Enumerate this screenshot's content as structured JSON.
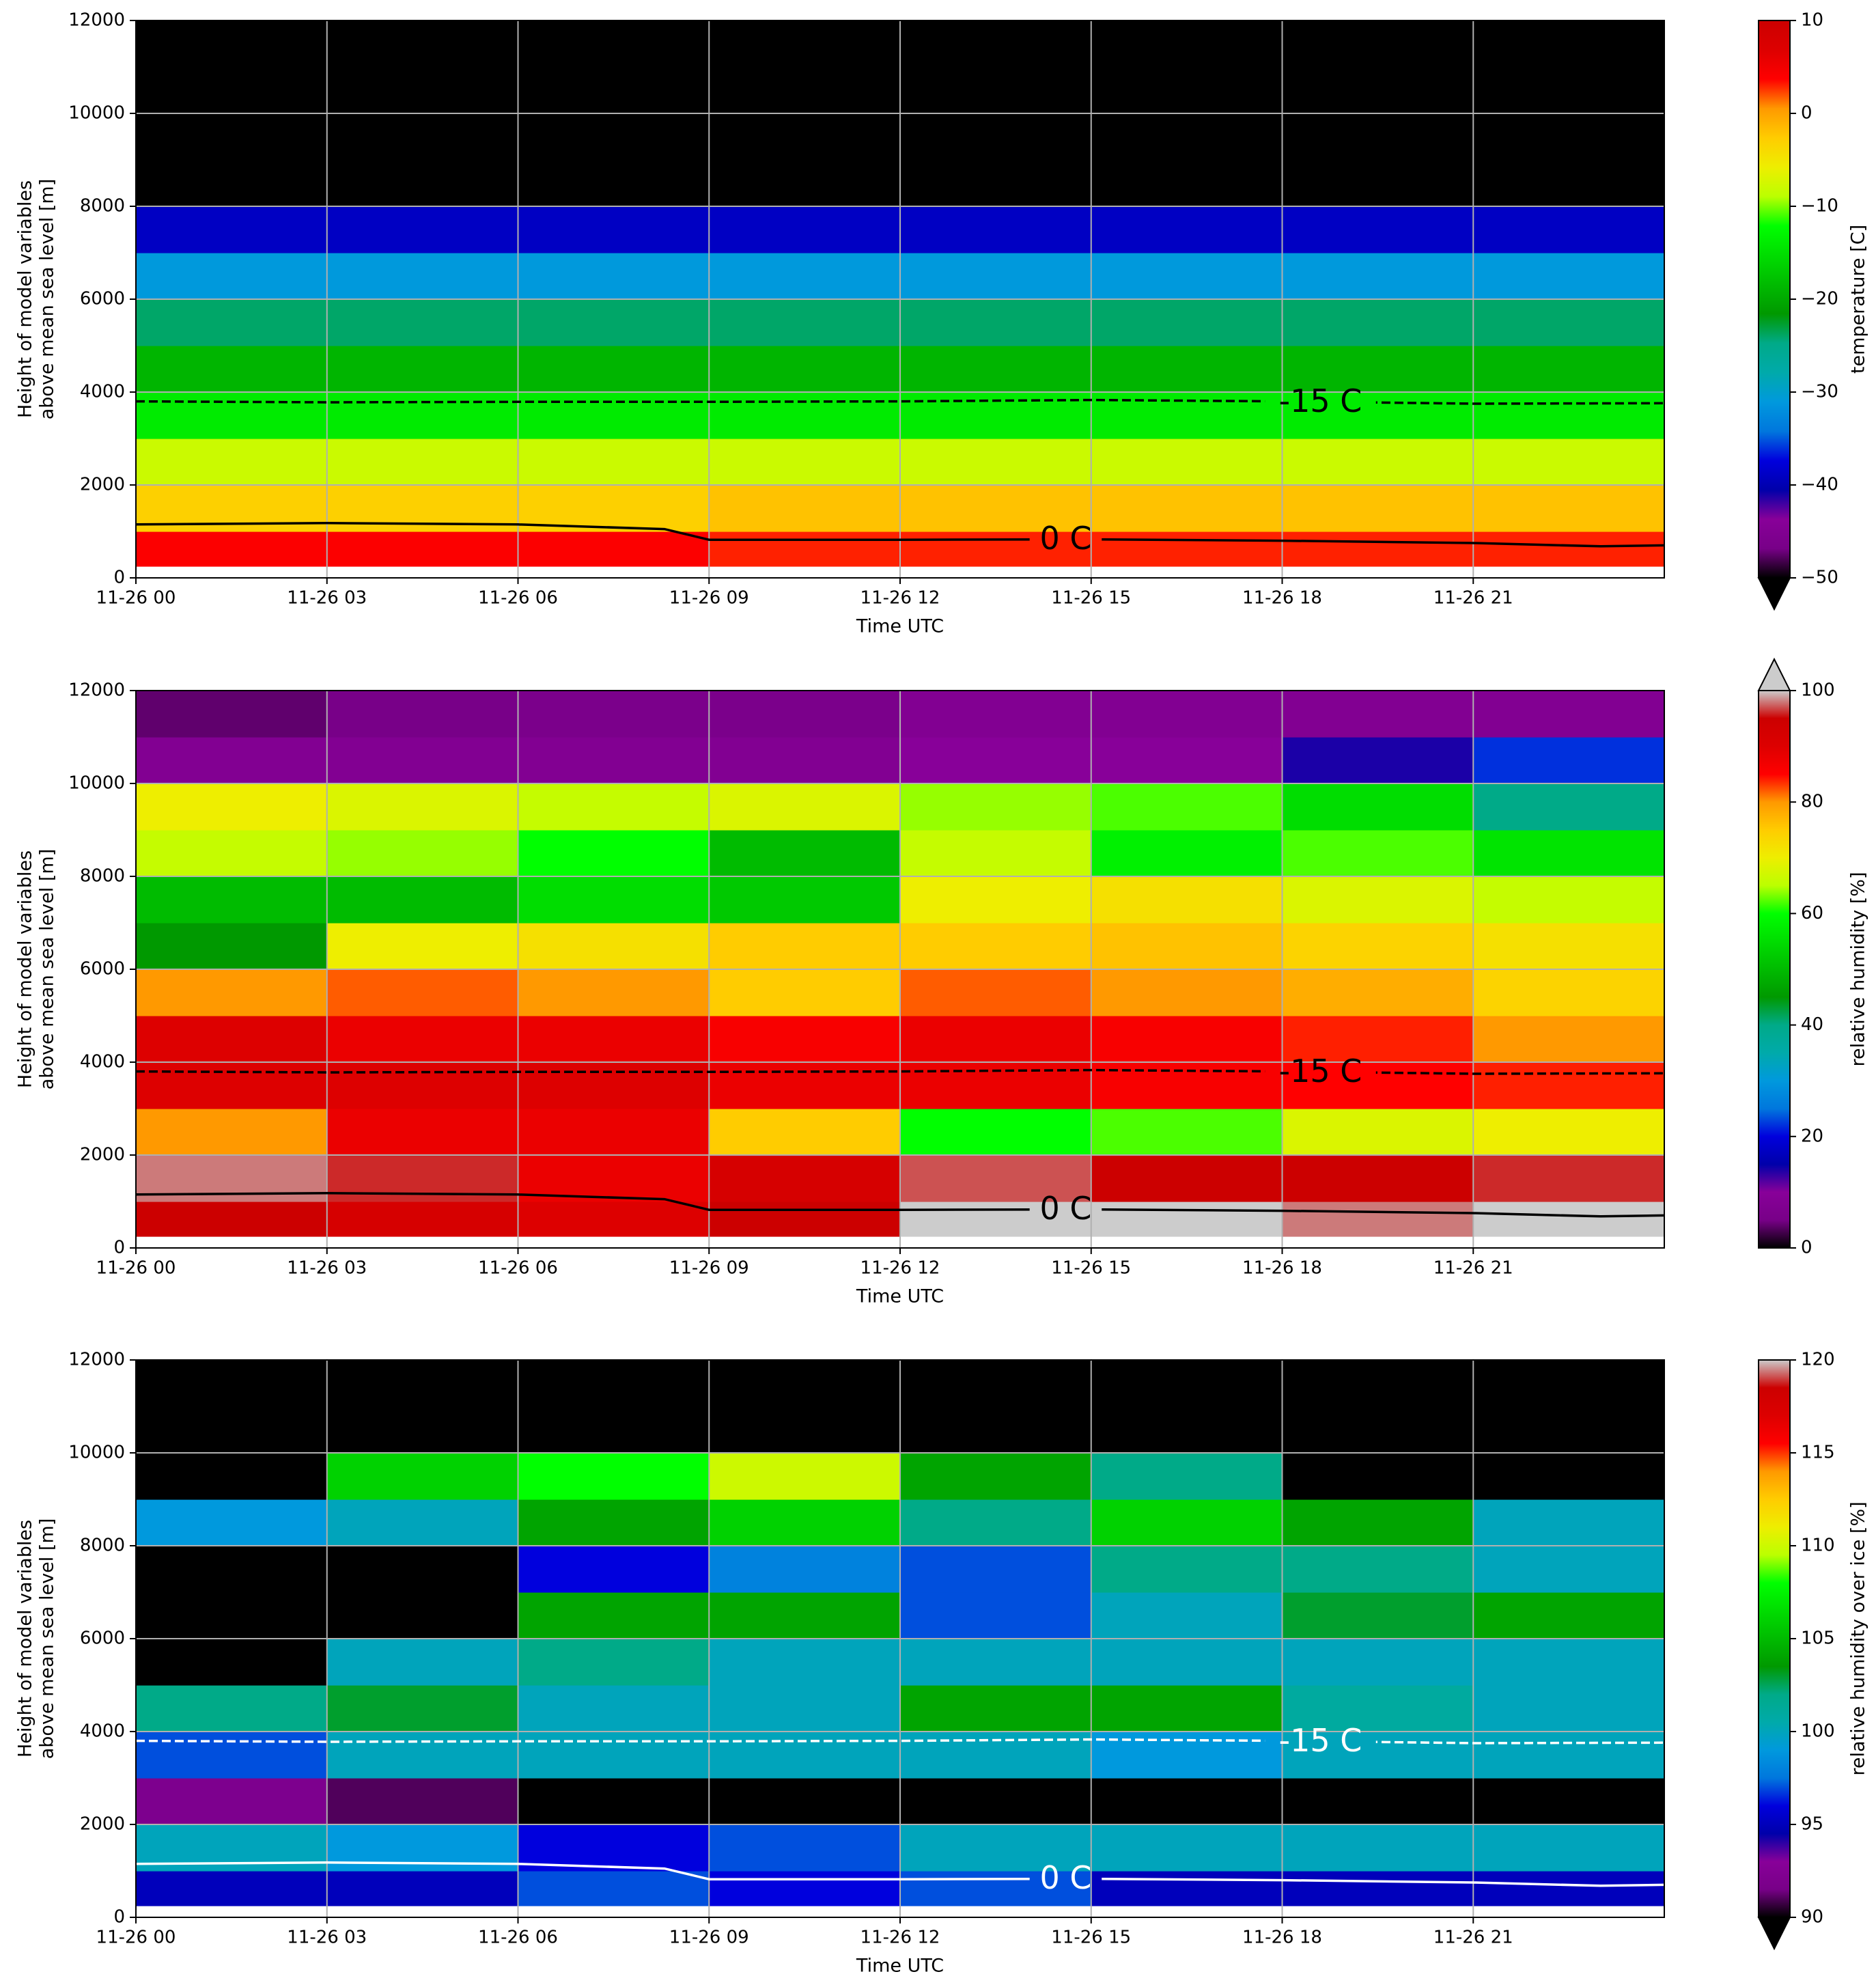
{
  "chart_data": [
    {
      "type": "heatmap",
      "xlabel": "Time UTC",
      "ylabel": [
        "Height of model variables",
        "above mean sea level [m]"
      ],
      "xlim": [
        0,
        24
      ],
      "xticks": [
        {
          "value": 0,
          "label": "11-26 00"
        },
        {
          "value": 3,
          "label": "11-26 03"
        },
        {
          "value": 6,
          "label": "11-26 06"
        },
        {
          "value": 9,
          "label": "11-26 09"
        },
        {
          "value": 12,
          "label": "11-26 12"
        },
        {
          "value": 15,
          "label": "11-26 15"
        },
        {
          "value": 18,
          "label": "11-26 18"
        },
        {
          "value": 21,
          "label": "11-26 21"
        }
      ],
      "ylim": [
        0,
        12000
      ],
      "yticks": [
        0,
        2000,
        4000,
        6000,
        8000,
        10000,
        12000
      ],
      "grid": true,
      "x_edges": [
        0,
        3,
        6,
        9,
        12,
        15,
        18,
        21,
        24
      ],
      "y_edges": [
        250,
        1000,
        2000,
        3000,
        4000,
        5000,
        6000,
        7000,
        8000,
        9000,
        10000,
        11000,
        12000
      ],
      "values": [
        [
          4,
          4,
          4,
          3,
          3,
          3,
          3,
          3
        ],
        [
          -3,
          -3,
          -3,
          -2,
          -2,
          -2,
          -2,
          -2
        ],
        [
          -8,
          -8,
          -8,
          -8,
          -8,
          -8,
          -8,
          -8
        ],
        [
          -14,
          -14,
          -14,
          -14,
          -14,
          -14,
          -14,
          -14
        ],
        [
          -19,
          -19,
          -19,
          -19,
          -19,
          -19,
          -19,
          -19
        ],
        [
          -24,
          -24,
          -24,
          -24,
          -24,
          -24,
          -24,
          -24
        ],
        [
          -31,
          -31,
          -31,
          -31,
          -31,
          -31,
          -31,
          -31
        ],
        [
          -39,
          -39,
          -39,
          -39,
          -39,
          -39,
          -39,
          -39
        ],
        [
          -52,
          -52,
          -52,
          -52,
          -52,
          -52,
          -52,
          -52
        ],
        [
          -58,
          -58,
          -58,
          -58,
          -58,
          -58,
          -58,
          -58
        ],
        [
          -60,
          -60,
          -60,
          -60,
          -60,
          -60,
          -60,
          -60
        ],
        [
          -60,
          -60,
          -60,
          -60,
          -60,
          -60,
          -60,
          -60
        ]
      ],
      "colormap": [
        "#000000",
        "#780088",
        "#880099",
        "#0000aa",
        "#0000dd",
        "#0077dd",
        "#0099dd",
        "#00aaaa",
        "#00aa88",
        "#009900",
        "#00bb00",
        "#00dd00",
        "#00ff00",
        "#bbff00",
        "#eeee00",
        "#ffcc00",
        "#ff9900",
        "#ff0000",
        "#dd0000",
        "#cc0000"
      ],
      "clim": [
        -50,
        10
      ],
      "cticks": [
        {
          "value": -50,
          "label": "−50"
        },
        {
          "value": -40,
          "label": "−40"
        },
        {
          "value": -30,
          "label": "−30"
        },
        {
          "value": -20,
          "label": "−20"
        },
        {
          "value": -10,
          "label": "−10"
        },
        0,
        10
      ],
      "colorbar_label": "temperature [C]",
      "extend": "min",
      "contours": [
        {
          "label": "-15 C",
          "color": "#000000",
          "dashed": true,
          "x": [
            0,
            3,
            6,
            9,
            12,
            15,
            18,
            21,
            24
          ],
          "y": [
            3800,
            3780,
            3790,
            3790,
            3800,
            3830,
            3800,
            3750,
            3760
          ]
        },
        {
          "label": "0 C",
          "color": "#000000",
          "dashed": false,
          "x": [
            0,
            3,
            6,
            8.3,
            9,
            12,
            15,
            18,
            21,
            23,
            24
          ],
          "y": [
            1150,
            1180,
            1150,
            1050,
            820,
            820,
            830,
            800,
            750,
            680,
            700
          ]
        }
      ]
    },
    {
      "type": "heatmap",
      "xlabel": "Time UTC",
      "ylabel": [
        "Height of model variables",
        "above mean sea level [m]"
      ],
      "xlim": [
        0,
        24
      ],
      "xticks": [
        {
          "value": 0,
          "label": "11-26 00"
        },
        {
          "value": 3,
          "label": "11-26 03"
        },
        {
          "value": 6,
          "label": "11-26 06"
        },
        {
          "value": 9,
          "label": "11-26 09"
        },
        {
          "value": 12,
          "label": "11-26 12"
        },
        {
          "value": 15,
          "label": "11-26 15"
        },
        {
          "value": 18,
          "label": "11-26 18"
        },
        {
          "value": 21,
          "label": "11-26 21"
        }
      ],
      "ylim": [
        0,
        12000
      ],
      "yticks": [
        0,
        2000,
        4000,
        6000,
        8000,
        10000,
        12000
      ],
      "grid": true,
      "x_edges": [
        0,
        3,
        6,
        9,
        12,
        15,
        18,
        21,
        24
      ],
      "y_edges": [
        250,
        1000,
        2000,
        3000,
        4000,
        5000,
        6000,
        7000,
        8000,
        9000,
        10000,
        11000,
        12000
      ],
      "values": [
        [
          95,
          92,
          90,
          95,
          100,
          100,
          98,
          100
        ],
        [
          98,
          96,
          88,
          92,
          97,
          95,
          95,
          96
        ],
        [
          80,
          88,
          88,
          75,
          60,
          62,
          68,
          70
        ],
        [
          90,
          90,
          90,
          88,
          88,
          86,
          85,
          84
        ],
        [
          90,
          88,
          88,
          86,
          88,
          86,
          84,
          80
        ],
        [
          80,
          82,
          80,
          75,
          82,
          80,
          78,
          74
        ],
        [
          45,
          70,
          72,
          75,
          75,
          76,
          74,
          72
        ],
        [
          50,
          50,
          55,
          52,
          70,
          72,
          68,
          66
        ],
        [
          66,
          64,
          60,
          50,
          66,
          58,
          62,
          56
        ],
        [
          70,
          68,
          66,
          68,
          64,
          62,
          55,
          40
        ],
        [
          8,
          8,
          8,
          8,
          10,
          10,
          14,
          22
        ],
        [
          4,
          5,
          6,
          6,
          8,
          8,
          8,
          8
        ]
      ],
      "colormap": [
        "#000000",
        "#780088",
        "#880099",
        "#0000aa",
        "#0000dd",
        "#0077dd",
        "#0099dd",
        "#00aaaa",
        "#00aa88",
        "#009900",
        "#00bb00",
        "#00dd00",
        "#00ff00",
        "#bbff00",
        "#eeee00",
        "#ffcc00",
        "#ff9900",
        "#ff0000",
        "#dd0000",
        "#cc0000",
        "#cccccc"
      ],
      "clim": [
        0,
        100
      ],
      "cticks": [
        0,
        20,
        40,
        60,
        80,
        100
      ],
      "colorbar_label": "relative humidity [%]",
      "extend": "max",
      "contours": [
        {
          "label": "-15 C",
          "color": "#000000",
          "dashed": true,
          "x": [
            0,
            3,
            6,
            9,
            12,
            15,
            18,
            21,
            24
          ],
          "y": [
            3800,
            3780,
            3790,
            3790,
            3800,
            3830,
            3800,
            3750,
            3760
          ]
        },
        {
          "label": "0 C",
          "color": "#000000",
          "dashed": false,
          "x": [
            0,
            3,
            6,
            8.3,
            9,
            12,
            15,
            18,
            21,
            23,
            24
          ],
          "y": [
            1150,
            1180,
            1150,
            1050,
            820,
            820,
            830,
            800,
            750,
            680,
            700
          ]
        }
      ]
    },
    {
      "type": "heatmap",
      "xlabel": "Time UTC",
      "ylabel": [
        "Height of model variables",
        "above mean sea level [m]"
      ],
      "xlim": [
        0,
        24
      ],
      "xticks": [
        {
          "value": 0,
          "label": "11-26 00"
        },
        {
          "value": 3,
          "label": "11-26 03"
        },
        {
          "value": 6,
          "label": "11-26 06"
        },
        {
          "value": 9,
          "label": "11-26 09"
        },
        {
          "value": 12,
          "label": "11-26 12"
        },
        {
          "value": 15,
          "label": "11-26 15"
        },
        {
          "value": 18,
          "label": "11-26 18"
        },
        {
          "value": 21,
          "label": "11-26 21"
        }
      ],
      "ylim": [
        0,
        12000
      ],
      "yticks": [
        0,
        2000,
        4000,
        6000,
        8000,
        10000,
        12000
      ],
      "grid": true,
      "x_edges": [
        0,
        3,
        6,
        9,
        12,
        15,
        18,
        21,
        24
      ],
      "y_edges": [
        250,
        1000,
        2000,
        3000,
        4000,
        5000,
        6000,
        7000,
        8000,
        9000,
        10000,
        11000,
        12000
      ],
      "values": [
        [
          95,
          95,
          97,
          96,
          97,
          95,
          95,
          95
        ],
        [
          100,
          99,
          96,
          97,
          100,
          100,
          100,
          100
        ],
        [
          92,
          91,
          88,
          86,
          86,
          85,
          85,
          85
        ],
        [
          97,
          100,
          100,
          100,
          100,
          99,
          100,
          100
        ],
        [
          102,
          103,
          100,
          100,
          104,
          104,
          101,
          100
        ],
        [
          88,
          100,
          102,
          100,
          100,
          100,
          100,
          100
        ],
        [
          85,
          88,
          104,
          104,
          97,
          100,
          103,
          104
        ],
        [
          85,
          86,
          96,
          98,
          97,
          102,
          102,
          100
        ],
        [
          99,
          100,
          104,
          106,
          102,
          106,
          104,
          100
        ],
        [
          85,
          106,
          108,
          110,
          104,
          102,
          85,
          85
        ],
        [
          85,
          85,
          85,
          85,
          85,
          85,
          85,
          85
        ],
        [
          85,
          85,
          85,
          85,
          85,
          85,
          85,
          85
        ]
      ],
      "colormap": [
        "#000000",
        "#780088",
        "#880099",
        "#0000aa",
        "#0000dd",
        "#0077dd",
        "#0099dd",
        "#00aaaa",
        "#00aa88",
        "#009900",
        "#00bb00",
        "#00dd00",
        "#00ff00",
        "#bbff00",
        "#eeee00",
        "#ffcc00",
        "#ff9900",
        "#ff0000",
        "#dd0000",
        "#cc0000",
        "#cccccc"
      ],
      "clim": [
        90,
        120
      ],
      "cticks": [
        90,
        95,
        100,
        105,
        110,
        115,
        120
      ],
      "colorbar_label": "relative humidity over ice [%]",
      "extend": "min",
      "contours": [
        {
          "label": "-15 C",
          "color": "#ffffff",
          "dashed": true,
          "x": [
            0,
            3,
            6,
            9,
            12,
            15,
            18,
            21,
            24
          ],
          "y": [
            3800,
            3780,
            3790,
            3790,
            3800,
            3830,
            3800,
            3750,
            3760
          ]
        },
        {
          "label": "0 C",
          "color": "#ffffff",
          "dashed": false,
          "x": [
            0,
            3,
            6,
            8.3,
            9,
            12,
            15,
            18,
            21,
            23,
            24
          ],
          "y": [
            1150,
            1180,
            1150,
            1050,
            820,
            820,
            830,
            800,
            750,
            680,
            700
          ]
        }
      ]
    }
  ]
}
